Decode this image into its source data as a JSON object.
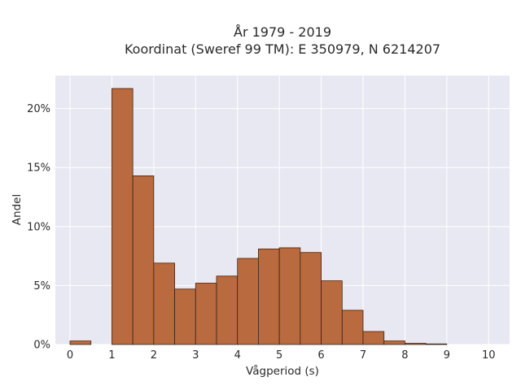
{
  "chart_data": {
    "type": "bar",
    "title": "År 1979 - 2019",
    "subtitle": "Koordinat (Sweref 99 TM): E 350979, N 6214207",
    "xlabel": "Vågperiod (s)",
    "ylabel": "Andel",
    "xlim": [
      -0.35,
      10.5
    ],
    "ylim": [
      0,
      0.228
    ],
    "x_ticks": [
      0,
      1,
      2,
      3,
      4,
      5,
      6,
      7,
      8,
      9,
      10
    ],
    "x_tick_labels": [
      "0",
      "1",
      "2",
      "3",
      "4",
      "5",
      "6",
      "7",
      "8",
      "9",
      "10"
    ],
    "y_ticks": [
      0,
      0.05,
      0.1,
      0.15,
      0.2
    ],
    "y_tick_labels": [
      "0%",
      "5%",
      "10%",
      "15%",
      "20%"
    ],
    "bin_width": 0.5,
    "bin_starts": [
      0,
      0.5,
      1.0,
      1.5,
      2.0,
      2.5,
      3.0,
      3.5,
      4.0,
      4.5,
      5.0,
      5.5,
      6.0,
      6.5,
      7.0,
      7.5,
      8.0,
      8.5
    ],
    "values": [
      0.003,
      0.0,
      0.217,
      0.143,
      0.069,
      0.047,
      0.052,
      0.058,
      0.073,
      0.081,
      0.082,
      0.078,
      0.054,
      0.029,
      0.011,
      0.003,
      0.001,
      0.0005
    ],
    "grid": true,
    "colors": {
      "bar_fill": "#b96a3e",
      "bar_edge": "#3a2418",
      "plot_bg": "#e8e8f2",
      "grid": "#ffffff"
    }
  }
}
